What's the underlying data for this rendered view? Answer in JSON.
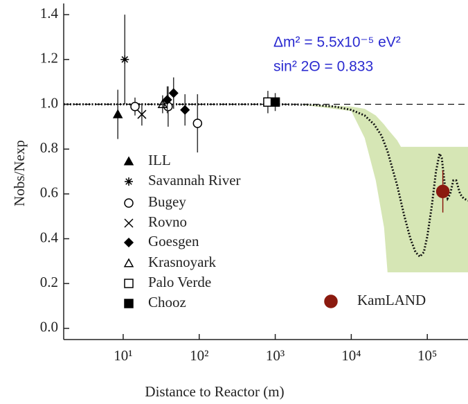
{
  "chart_data": {
    "type": "scatter",
    "xlabel": "Distance to Reactor (m)",
    "ylabel": "Nobs/Nexp",
    "annotations": [
      "Δm² = 5.5x10⁻⁵ eV²",
      "sin² 2Θ = 0.833"
    ],
    "log_x": true,
    "xlim": [
      1.65,
      343000
    ],
    "ylim": [
      -0.05,
      1.45
    ],
    "xticks": [
      {
        "value": 10,
        "label": "10¹"
      },
      {
        "value": 100,
        "label": "10²"
      },
      {
        "value": 1000,
        "label": "10³"
      },
      {
        "value": 10000,
        "label": "10⁴"
      },
      {
        "value": 100000,
        "label": "10⁵"
      }
    ],
    "yticks": [
      {
        "value": 0,
        "label": "0.0"
      },
      0.2,
      0.4,
      0.6,
      0.8,
      {
        "value": 1,
        "label": "1.0"
      },
      1.2,
      1.4
    ],
    "hline": 1,
    "band": {
      "color": "#d6e6b5",
      "x": [
        2000,
        10000,
        15000,
        21000,
        27000,
        30000,
        40000,
        45000,
        343000
      ],
      "upper": [
        1.0,
        0.99,
        0.98,
        0.95,
        0.91,
        0.89,
        0.84,
        0.81,
        0.81
      ],
      "lower": [
        1.0,
        0.97,
        0.85,
        0.66,
        0.45,
        0.25,
        0.25,
        0.25,
        0.25
      ]
    },
    "curve": {
      "x": [
        1.65,
        1000,
        3000,
        6000,
        10000,
        15000,
        20000,
        25000,
        30000,
        40000,
        50000,
        60000,
        70000,
        80000,
        90000,
        100000,
        115000,
        130000,
        145000,
        155000,
        170000,
        185000,
        200000,
        220000,
        240000,
        270000,
        300000,
        343000
      ],
      "y": [
        1.0,
        1.0,
        0.998,
        0.99,
        0.975,
        0.95,
        0.91,
        0.86,
        0.79,
        0.64,
        0.5,
        0.4,
        0.34,
        0.32,
        0.34,
        0.41,
        0.55,
        0.7,
        0.78,
        0.76,
        0.64,
        0.58,
        0.6,
        0.66,
        0.66,
        0.6,
        0.58,
        0.57
      ]
    },
    "series": [
      {
        "name": "ILL",
        "marker": "triangle",
        "color": "#000000",
        "x": [
          8.5
        ],
        "y": [
          0.955
        ],
        "err": [
          0.11
        ]
      },
      {
        "name": "Savannah River",
        "marker": "asterisk",
        "color": "#000000",
        "x": [
          10.5
        ],
        "y": [
          1.2
        ],
        "err": [
          0.2
        ]
      },
      {
        "name": "Bugey",
        "marker": "circle-open",
        "color": "#000000",
        "x": [
          14.3,
          39,
          95
        ],
        "y": [
          0.99,
          0.99,
          0.915
        ],
        "err": [
          0.04,
          0.09,
          0.13
        ]
      },
      {
        "name": "Rovno",
        "marker": "x",
        "color": "#000000",
        "x": [
          17.6
        ],
        "y": [
          0.955
        ],
        "err": [
          0.05
        ]
      },
      {
        "name": "Goesgen",
        "marker": "diamond",
        "color": "#000000",
        "x": [
          38,
          46,
          65
        ],
        "y": [
          1.02,
          1.05,
          0.975
        ],
        "err": [
          0.06,
          0.07,
          0.07
        ]
      },
      {
        "name": "Krasnoyark",
        "marker": "triangle-open",
        "color": "#000000",
        "x": [
          33
        ],
        "y": [
          1.0
        ],
        "err": [
          0.04
        ]
      },
      {
        "name": "Palo Verde",
        "marker": "square-open",
        "color": "#000000",
        "x": [
          800
        ],
        "y": [
          1.01
        ],
        "err": [
          0.05
        ]
      },
      {
        "name": "Chooz",
        "marker": "square",
        "color": "#000000",
        "x": [
          1000
        ],
        "y": [
          1.01
        ],
        "err": [
          0.04
        ]
      },
      {
        "name": "KamLAND",
        "marker": "circle",
        "color": "#8b1a0f",
        "x": [
          160000
        ],
        "y": [
          0.611
        ],
        "err": [
          0.094
        ]
      }
    ]
  }
}
